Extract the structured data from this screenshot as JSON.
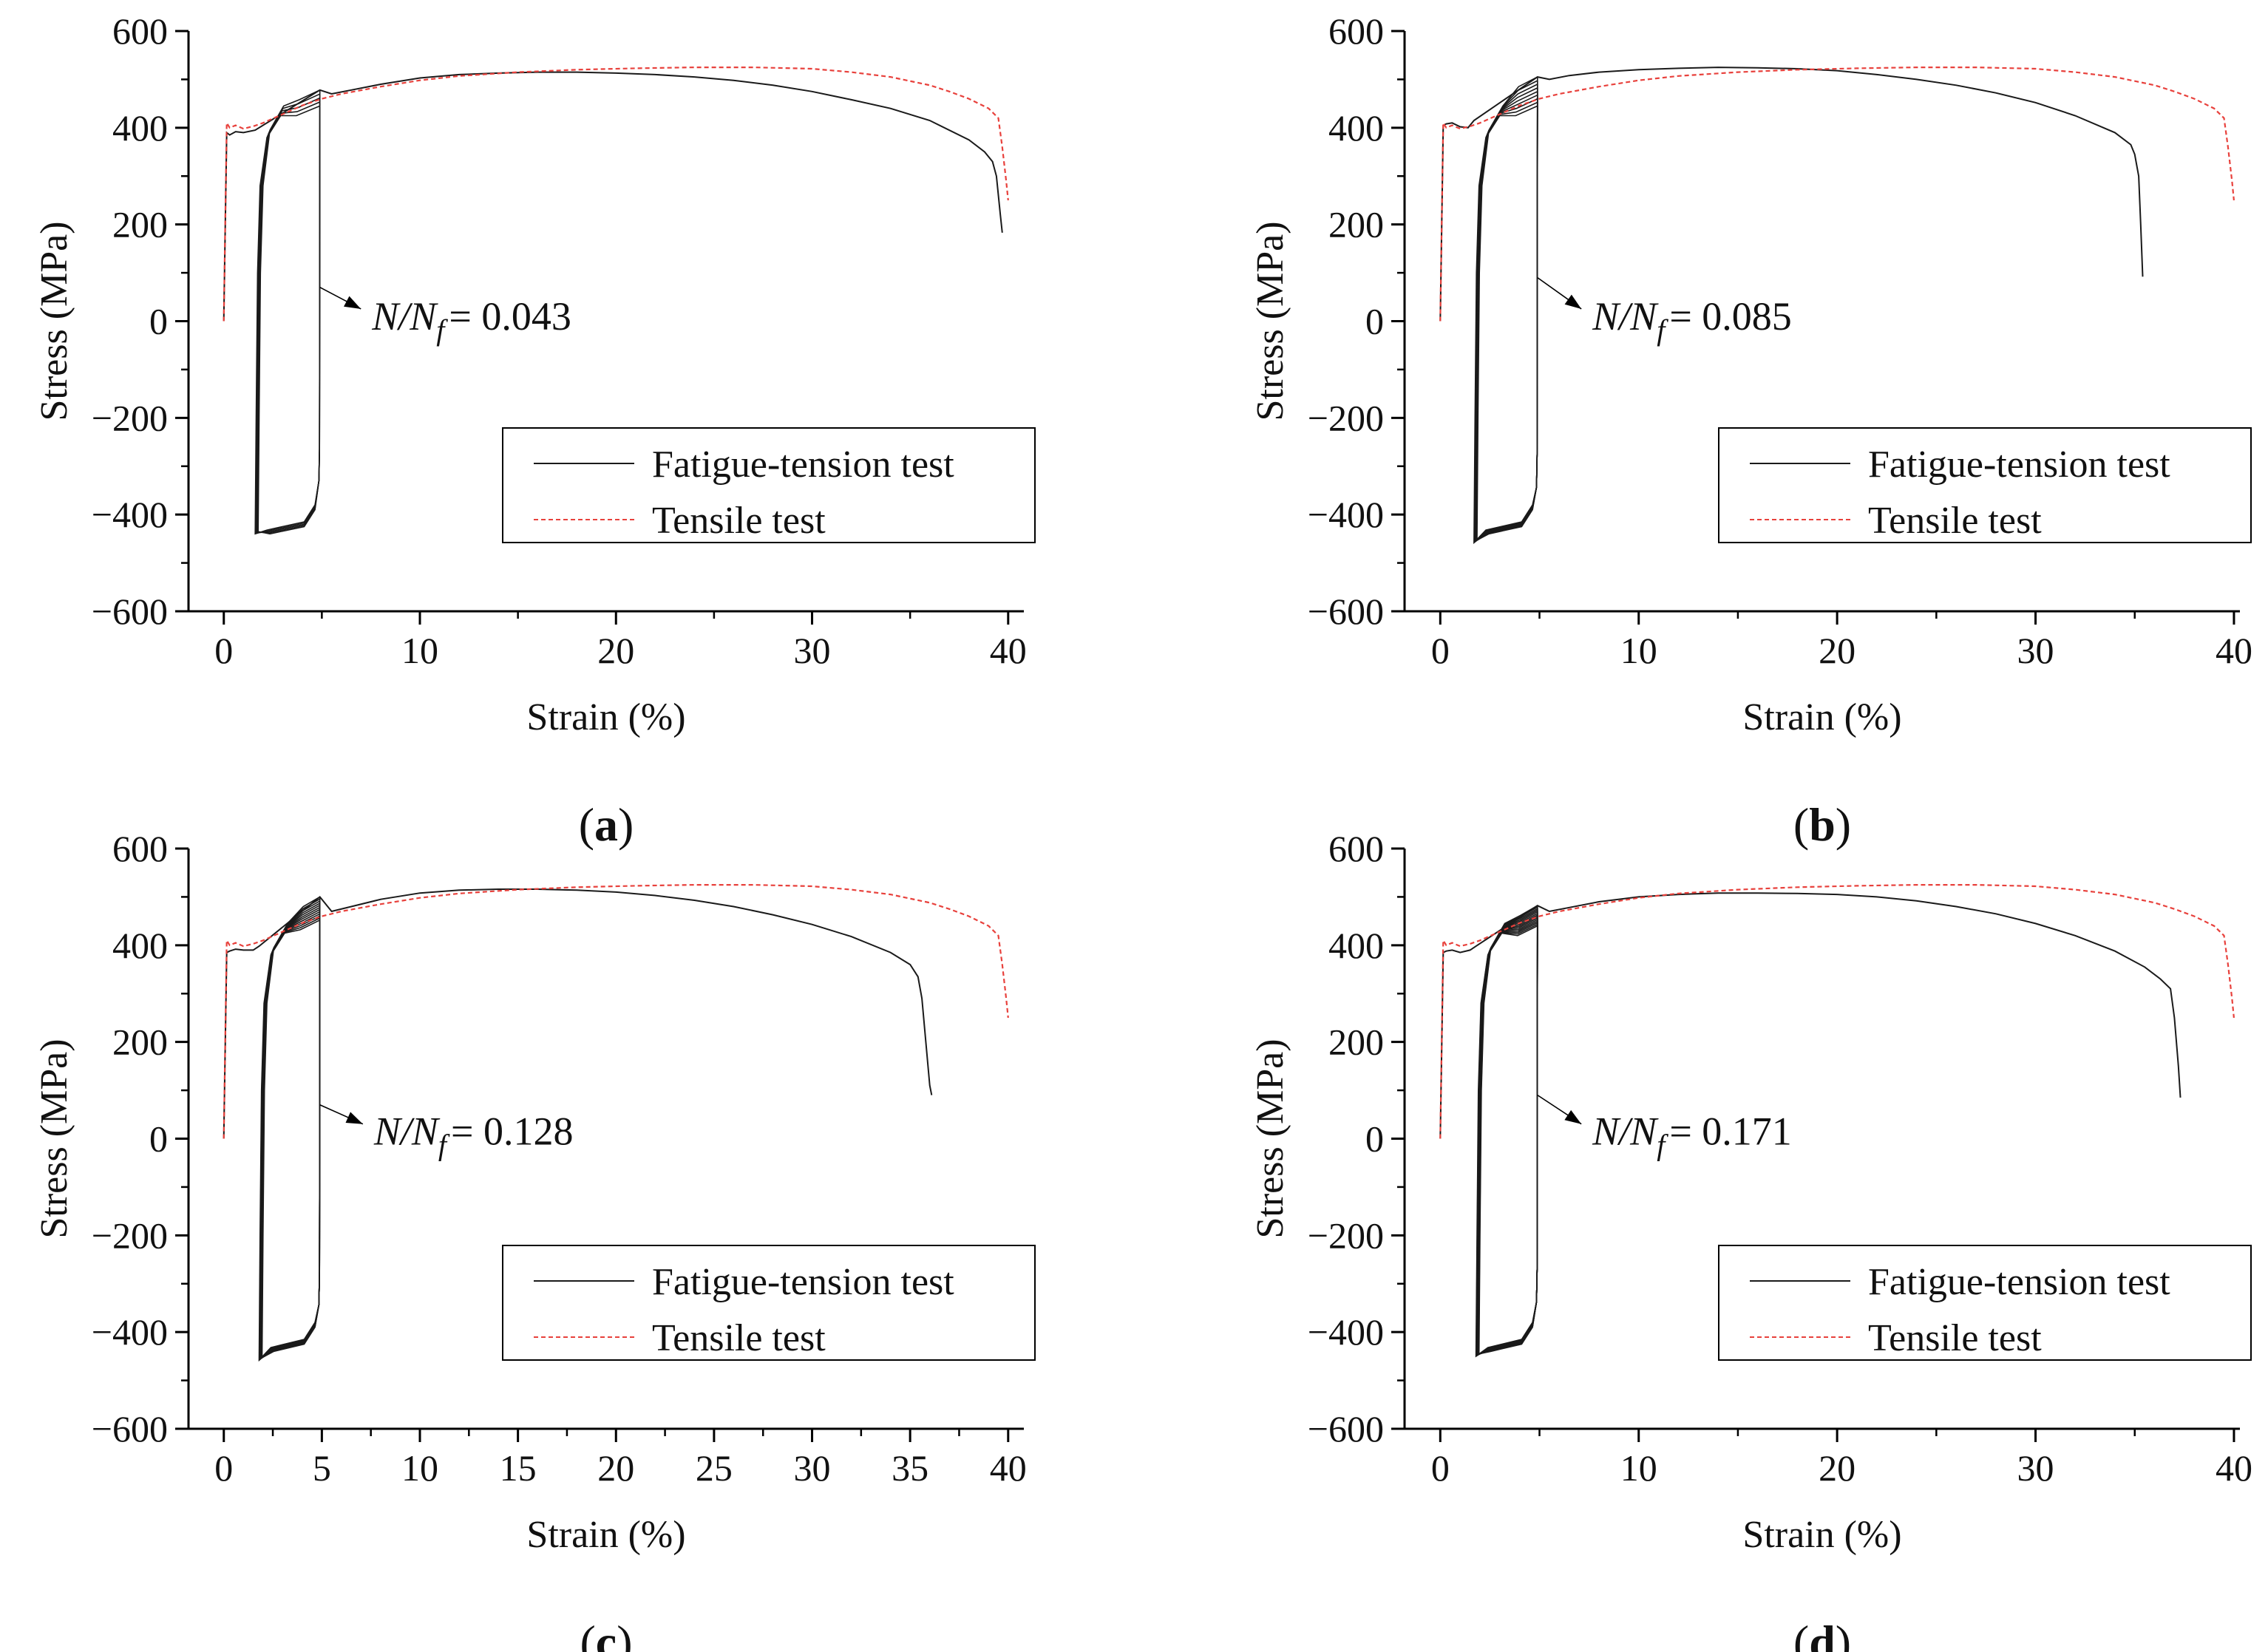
{
  "colors": {
    "fatigue": "#1a1a1a",
    "tensile": "#e8413c",
    "axis": "#000000",
    "background": "#ffffff"
  },
  "legend_labels": {
    "fatigue": "Fatigue-tension test",
    "tensile": "Tensile test"
  },
  "chart_data": [
    {
      "panel": "a",
      "type": "line",
      "xlabel": "Strain (%)",
      "ylabel": "Stress (MPa)",
      "xlim": [
        -1.8,
        40.8
      ],
      "ylim": [
        -600,
        600
      ],
      "xticks": [
        0,
        10,
        20,
        30,
        40
      ],
      "yticks": [
        -600,
        -400,
        -200,
        0,
        200,
        400,
        600
      ],
      "legend": "lower-right",
      "grid": false,
      "annotation": {
        "text_prefix": "N/N",
        "subscript": "f",
        "value": "= 0.043",
        "point": [
          4.9,
          70
        ],
        "text_at": [
          8.5,
          10
        ]
      },
      "hysteresis": {
        "x_min": 1.6,
        "x_max": 4.9,
        "y_min": -440,
        "y_max_first": 445,
        "y_max_last": 478,
        "loops": 5
      },
      "series": [
        {
          "name": "Fatigue-tension test",
          "key": "fatigue",
          "x": [
            0,
            0.15,
            0.3,
            0.6,
            1.0,
            1.6,
            4.9,
            5.5,
            6.5,
            8,
            10,
            12,
            14,
            16,
            18,
            20,
            22,
            24,
            26,
            28,
            30,
            32,
            34,
            36,
            38,
            38.8,
            39.2,
            39.4,
            39.6,
            39.7
          ],
          "y": [
            0,
            390,
            385,
            392,
            390,
            395,
            478,
            470,
            478,
            490,
            503,
            510,
            513,
            515,
            515,
            513,
            510,
            505,
            498,
            488,
            475,
            458,
            440,
            415,
            375,
            350,
            330,
            300,
            220,
            183
          ]
        },
        {
          "name": "Tensile test",
          "key": "tensile",
          "x": [
            0,
            0.15,
            0.3,
            0.6,
            1.0,
            1.5,
            2.0,
            3.0,
            4.0,
            5.0,
            6.0,
            8,
            10,
            12,
            15,
            18,
            21,
            24,
            27,
            30,
            32,
            34,
            36,
            37,
            38,
            39,
            39.5,
            39.7,
            39.9,
            40.0
          ],
          "y": [
            0,
            410,
            400,
            405,
            398,
            403,
            410,
            428,
            446,
            460,
            470,
            485,
            498,
            507,
            515,
            520,
            523,
            525,
            525,
            522,
            515,
            505,
            488,
            475,
            460,
            440,
            420,
            360,
            290,
            250
          ]
        }
      ]
    },
    {
      "panel": "b",
      "type": "line",
      "xlabel": "Strain (%)",
      "ylabel": "Stress (MPa)",
      "xlim": [
        -1.8,
        40.3
      ],
      "ylim": [
        -600,
        600
      ],
      "xticks": [
        0,
        10,
        20,
        30,
        40
      ],
      "yticks": [
        -600,
        -400,
        -200,
        0,
        200,
        400,
        600
      ],
      "legend": "lower-right",
      "grid": false,
      "annotation": {
        "text_prefix": "N/N",
        "subscript": "f",
        "value": "= 0.085",
        "point": [
          4.9,
          90
        ],
        "text_at": [
          8.6,
          10
        ]
      },
      "hysteresis": {
        "x_min": 1.7,
        "x_max": 4.9,
        "y_min": -458,
        "y_max_first": 445,
        "y_max_last": 505,
        "loops": 9
      },
      "series": [
        {
          "name": "Fatigue-tension test",
          "key": "fatigue",
          "x": [
            0,
            0.15,
            0.3,
            0.6,
            1.0,
            1.4,
            1.7,
            4.9,
            5.5,
            6.5,
            8,
            10,
            12,
            14,
            16,
            18,
            20,
            22,
            24,
            26,
            28,
            30,
            32,
            34,
            34.8,
            35.0,
            35.2,
            35.3,
            35.4
          ],
          "y": [
            0,
            405,
            408,
            410,
            402,
            400,
            415,
            505,
            500,
            508,
            515,
            520,
            523,
            525,
            524,
            522,
            518,
            510,
            500,
            488,
            472,
            452,
            425,
            390,
            365,
            345,
            300,
            200,
            92
          ]
        },
        {
          "name": "Tensile test",
          "key": "tensile",
          "x": [
            0,
            0.15,
            0.3,
            0.6,
            1.0,
            1.5,
            2.0,
            3.0,
            4.0,
            5.0,
            6.0,
            8,
            10,
            12,
            15,
            18,
            21,
            24,
            27,
            30,
            32,
            34,
            36,
            37,
            38,
            39,
            39.5,
            39.7,
            39.9,
            40.0
          ],
          "y": [
            0,
            410,
            400,
            405,
            398,
            403,
            410,
            428,
            446,
            460,
            470,
            485,
            498,
            507,
            515,
            520,
            523,
            525,
            525,
            522,
            515,
            505,
            488,
            475,
            460,
            440,
            420,
            360,
            290,
            250
          ]
        }
      ]
    },
    {
      "panel": "c",
      "type": "line",
      "xlabel": "Strain (%)",
      "ylabel": "Stress (MPa)",
      "xlim": [
        -1.8,
        40.8
      ],
      "ylim": [
        -600,
        600
      ],
      "xticks": [
        0,
        5,
        10,
        15,
        20,
        25,
        30,
        35,
        40
      ],
      "yticks": [
        -600,
        -400,
        -200,
        0,
        200,
        400,
        600
      ],
      "legend": "lower-right",
      "grid": false,
      "annotation": {
        "text_prefix": "N/N",
        "subscript": "f",
        "value": "= 0.128",
        "point": [
          4.9,
          70
        ],
        "text_at": [
          8.6,
          15
        ]
      },
      "hysteresis": {
        "x_min": 1.8,
        "x_max": 4.9,
        "y_min": -458,
        "y_max_first": 452,
        "y_max_last": 500,
        "loops": 12
      },
      "series": [
        {
          "name": "Fatigue-tension test",
          "key": "fatigue",
          "x": [
            0,
            0.15,
            0.3,
            0.6,
            1.0,
            1.5,
            1.8,
            4.9,
            5.5,
            6.5,
            8,
            10,
            12,
            14,
            16,
            18,
            20,
            22,
            24,
            26,
            28,
            30,
            32,
            34,
            35.0,
            35.4,
            35.6,
            35.8,
            36.0,
            36.1
          ],
          "y": [
            0,
            385,
            388,
            392,
            390,
            390,
            398,
            500,
            470,
            480,
            495,
            508,
            514,
            516,
            516,
            514,
            510,
            503,
            493,
            480,
            463,
            443,
            418,
            385,
            360,
            335,
            290,
            200,
            110,
            90
          ]
        },
        {
          "name": "Tensile test",
          "key": "tensile",
          "x": [
            0,
            0.15,
            0.3,
            0.6,
            1.0,
            1.5,
            2.0,
            3.0,
            4.0,
            5.0,
            6.0,
            8,
            10,
            12,
            15,
            18,
            21,
            24,
            27,
            30,
            32,
            34,
            36,
            37,
            38,
            39,
            39.5,
            39.7,
            39.9,
            40.0
          ],
          "y": [
            0,
            410,
            400,
            405,
            398,
            403,
            410,
            428,
            446,
            460,
            470,
            485,
            498,
            507,
            515,
            520,
            523,
            525,
            525,
            522,
            515,
            505,
            488,
            475,
            460,
            440,
            420,
            360,
            290,
            250
          ]
        }
      ]
    },
    {
      "panel": "d",
      "type": "line",
      "xlabel": "Strain (%)",
      "ylabel": "Stress (MPa)",
      "xlim": [
        -1.8,
        40.3
      ],
      "ylim": [
        -600,
        600
      ],
      "xticks": [
        0,
        10,
        20,
        30,
        40
      ],
      "yticks": [
        -600,
        -400,
        -200,
        0,
        200,
        400,
        600
      ],
      "legend": "lower-right",
      "grid": false,
      "annotation": {
        "text_prefix": "N/N",
        "subscript": "f",
        "value": "= 0.171",
        "point": [
          4.9,
          90
        ],
        "text_at": [
          8.6,
          15
        ]
      },
      "hysteresis": {
        "x_min": 1.8,
        "x_max": 4.9,
        "y_min": -450,
        "y_max_first": 440,
        "y_max_last": 482,
        "loops": 14
      },
      "series": [
        {
          "name": "Fatigue-tension test",
          "key": "fatigue",
          "x": [
            0,
            0.15,
            0.3,
            0.6,
            1.0,
            1.5,
            1.8,
            4.9,
            5.5,
            6.5,
            8,
            10,
            12,
            14,
            16,
            18,
            20,
            22,
            24,
            26,
            28,
            30,
            32,
            34,
            35.5,
            36.3,
            36.8,
            37.0,
            37.2,
            37.3
          ],
          "y": [
            0,
            385,
            388,
            390,
            385,
            390,
            398,
            482,
            470,
            478,
            490,
            500,
            505,
            508,
            508,
            507,
            505,
            500,
            492,
            480,
            465,
            445,
            420,
            388,
            355,
            330,
            310,
            250,
            150,
            85
          ]
        },
        {
          "name": "Tensile test",
          "key": "tensile",
          "x": [
            0,
            0.15,
            0.3,
            0.6,
            1.0,
            1.5,
            2.0,
            3.0,
            4.0,
            5.0,
            6.0,
            8,
            10,
            12,
            15,
            18,
            21,
            24,
            27,
            30,
            32,
            34,
            36,
            37,
            38,
            39,
            39.5,
            39.7,
            39.9,
            40.0
          ],
          "y": [
            0,
            410,
            400,
            405,
            398,
            403,
            410,
            428,
            446,
            460,
            470,
            485,
            498,
            507,
            515,
            520,
            523,
            525,
            525,
            522,
            515,
            505,
            488,
            475,
            460,
            440,
            420,
            360,
            290,
            250
          ]
        }
      ]
    }
  ]
}
